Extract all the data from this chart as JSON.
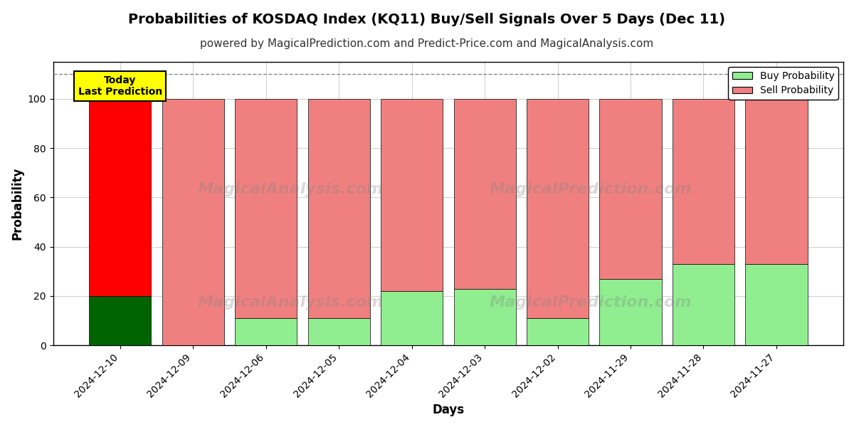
{
  "title": "Probabilities of KOSDAQ Index (KQ11) Buy/Sell Signals Over 5 Days (Dec 11)",
  "subtitle": "powered by MagicalPrediction.com and Predict-Price.com and MagicalAnalysis.com",
  "xlabel": "Days",
  "ylabel": "Probability",
  "watermark1": "MagicalAnalysis.com",
  "watermark2": "MagicalPrediction.com",
  "categories": [
    "2024-12-10",
    "2024-12-09",
    "2024-12-06",
    "2024-12-05",
    "2024-12-04",
    "2024-12-03",
    "2024-12-02",
    "2024-11-29",
    "2024-11-28",
    "2024-11-27"
  ],
  "buy_values": [
    20,
    0,
    11,
    11,
    22,
    23,
    11,
    27,
    33,
    33
  ],
  "sell_values": [
    80,
    100,
    89,
    89,
    78,
    77,
    89,
    73,
    67,
    67
  ],
  "today_buy_color": "#006400",
  "today_sell_color": "#ff0000",
  "buy_color": "#90EE90",
  "sell_color": "#F08080",
  "today_label": "Today\nLast Prediction",
  "today_label_bg": "#ffff00",
  "today_label_border": "#000000",
  "dashed_line_y": 110,
  "ylim": [
    0,
    115
  ],
  "yticks": [
    0,
    20,
    40,
    60,
    80,
    100
  ],
  "legend_buy": "Buy Probability",
  "legend_sell": "Sell Probability",
  "bg_color": "#ffffff",
  "grid_color": "#bbbbbb",
  "title_fontsize": 14,
  "subtitle_fontsize": 11,
  "axis_label_fontsize": 12,
  "tick_fontsize": 10,
  "bar_width": 0.85,
  "bar_edge_color": "#000000",
  "bar_edge_width": 0.5
}
